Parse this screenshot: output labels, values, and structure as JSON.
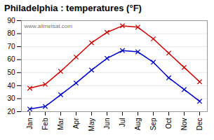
{
  "chart_data": {
    "type": "line",
    "title": "Philadelphia : temperatures (°F)",
    "categories": [
      "Jan",
      "Feb",
      "Mar",
      "Apr",
      "May",
      "Jun",
      "Jul",
      "Aug",
      "Sep",
      "Oct",
      "Nov",
      "Dec"
    ],
    "series": [
      {
        "color": "#cc0000",
        "marker": "x",
        "values": [
          38,
          41,
          51,
          62,
          73,
          81,
          86,
          85,
          76,
          65,
          54,
          43
        ]
      },
      {
        "color": "#0000cc",
        "marker": "x",
        "values": [
          22,
          24,
          33,
          42,
          52,
          61,
          67,
          66,
          58,
          46,
          37,
          28
        ]
      }
    ],
    "ylim": [
      20,
      90
    ],
    "yticks": [
      20,
      30,
      40,
      50,
      60,
      70,
      80,
      90
    ],
    "grid": true,
    "annotations": [
      "www.allmetsat.com"
    ]
  }
}
